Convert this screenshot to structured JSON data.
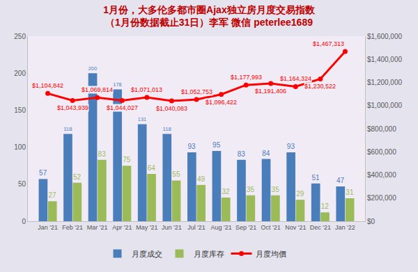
{
  "chart_data": {
    "type": "bar",
    "title": "1月份，大多伦多都市圈Ajax独立房月度交易指数",
    "subtitle": "（1月份数据截止31日）李军 微信 peterlee1689",
    "categories": [
      "Jan '21",
      "Feb '21",
      "Mar '21",
      "Apr '21",
      "May '21",
      "Jun '21",
      "Jul '21",
      "Aug '21",
      "Sep '21",
      "Oct '21",
      "Nov '21",
      "Dec '21",
      "Jan '22"
    ],
    "series": [
      {
        "name": "月度成交",
        "type": "bar",
        "color": "#4a7ebb",
        "values": [
          57,
          118,
          200,
          178,
          131,
          118,
          93,
          95,
          83,
          84,
          93,
          51,
          47
        ]
      },
      {
        "name": "月度库存",
        "type": "bar",
        "color": "#9bbb59",
        "values": [
          27,
          52,
          83,
          75,
          64,
          55,
          49,
          32,
          35,
          35,
          29,
          12,
          31
        ]
      },
      {
        "name": "月度均價",
        "type": "line",
        "axis": "y2",
        "color": "#ff0000",
        "marker": "circle",
        "line_style": "solid",
        "values": [
          1104842,
          1043939,
          1069814,
          1044027,
          1071013,
          1040083,
          1052753,
          1096422,
          1177993,
          1191406,
          1164324,
          1230522,
          1467313
        ],
        "value_labels": [
          "$1,104,842",
          "$1,043,939",
          "$1,069,814",
          "$1,044,027",
          "$1,071,013",
          "$1,040,083",
          "$1,052,753",
          "$1,096,422",
          "$1,177,993",
          "$1,191,406",
          "$1,164,324",
          "$1,230,522",
          "$1,467,313"
        ]
      }
    ],
    "ylim": [
      0,
      250
    ],
    "yticks": [
      0,
      50,
      100,
      150,
      200,
      250
    ],
    "y2lim": [
      0,
      1600000
    ],
    "y2ticks": [
      {
        "value": 0,
        "label": "$0"
      },
      {
        "value": 200000,
        "label": "$200,000"
      },
      {
        "value": 400000,
        "label": "$400,000"
      },
      {
        "value": 600000,
        "label": "$600,000"
      },
      {
        "value": 800000,
        "label": "$800,000"
      },
      {
        "value": 1000000,
        "label": "$1,000,000"
      },
      {
        "value": 1200000,
        "label": "$1,200,000"
      },
      {
        "value": 1400000,
        "label": "$1,400,000"
      },
      {
        "value": 1600000,
        "label": "$1,600,000"
      }
    ],
    "grid": false,
    "legend": "bottom",
    "data_labels": true
  }
}
